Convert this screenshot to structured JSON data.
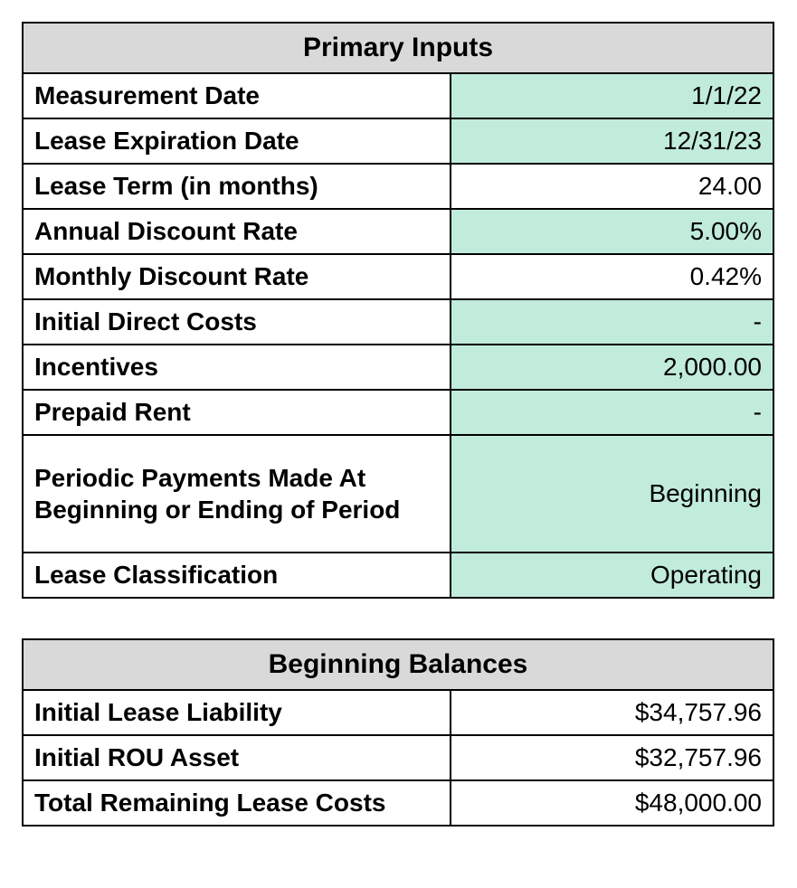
{
  "colors": {
    "header_bg": "#d9d9d9",
    "input_bg": "#c1ebdb",
    "calc_bg": "#ffffff",
    "border": "#000000",
    "text": "#000000"
  },
  "primary_inputs": {
    "header": "Primary Inputs",
    "rows": {
      "measurement_date": {
        "label": "Measurement Date",
        "value": "1/1/22",
        "is_input": true
      },
      "lease_expiration": {
        "label": "Lease Expiration Date",
        "value": "12/31/23",
        "is_input": true
      },
      "lease_term": {
        "label": "Lease Term (in months)",
        "value": "24.00",
        "is_input": false
      },
      "annual_discount": {
        "label": "Annual Discount Rate",
        "value": "5.00%",
        "is_input": true
      },
      "monthly_discount": {
        "label": "Monthly Discount Rate",
        "value": "0.42%",
        "is_input": false
      },
      "initial_direct": {
        "label": "Initial Direct Costs",
        "value": "-",
        "is_input": true
      },
      "incentives": {
        "label": "Incentives",
        "value": "2,000.00",
        "is_input": true
      },
      "prepaid_rent": {
        "label": "Prepaid Rent",
        "value": "-",
        "is_input": true
      },
      "payment_timing": {
        "label": "Periodic Payments Made At Beginning or Ending of Period",
        "value": "Beginning",
        "is_input": true
      },
      "classification": {
        "label": "Lease Classification",
        "value": "Operating",
        "is_input": true
      }
    }
  },
  "beginning_balances": {
    "header": "Beginning Balances",
    "rows": {
      "initial_liability": {
        "label": "Initial Lease Liability",
        "value": "$34,757.96"
      },
      "initial_rou": {
        "label": "Initial ROU Asset",
        "value": "$32,757.96"
      },
      "remaining_costs": {
        "label": "Total Remaining Lease Costs",
        "value": "$48,000.00"
      }
    }
  }
}
